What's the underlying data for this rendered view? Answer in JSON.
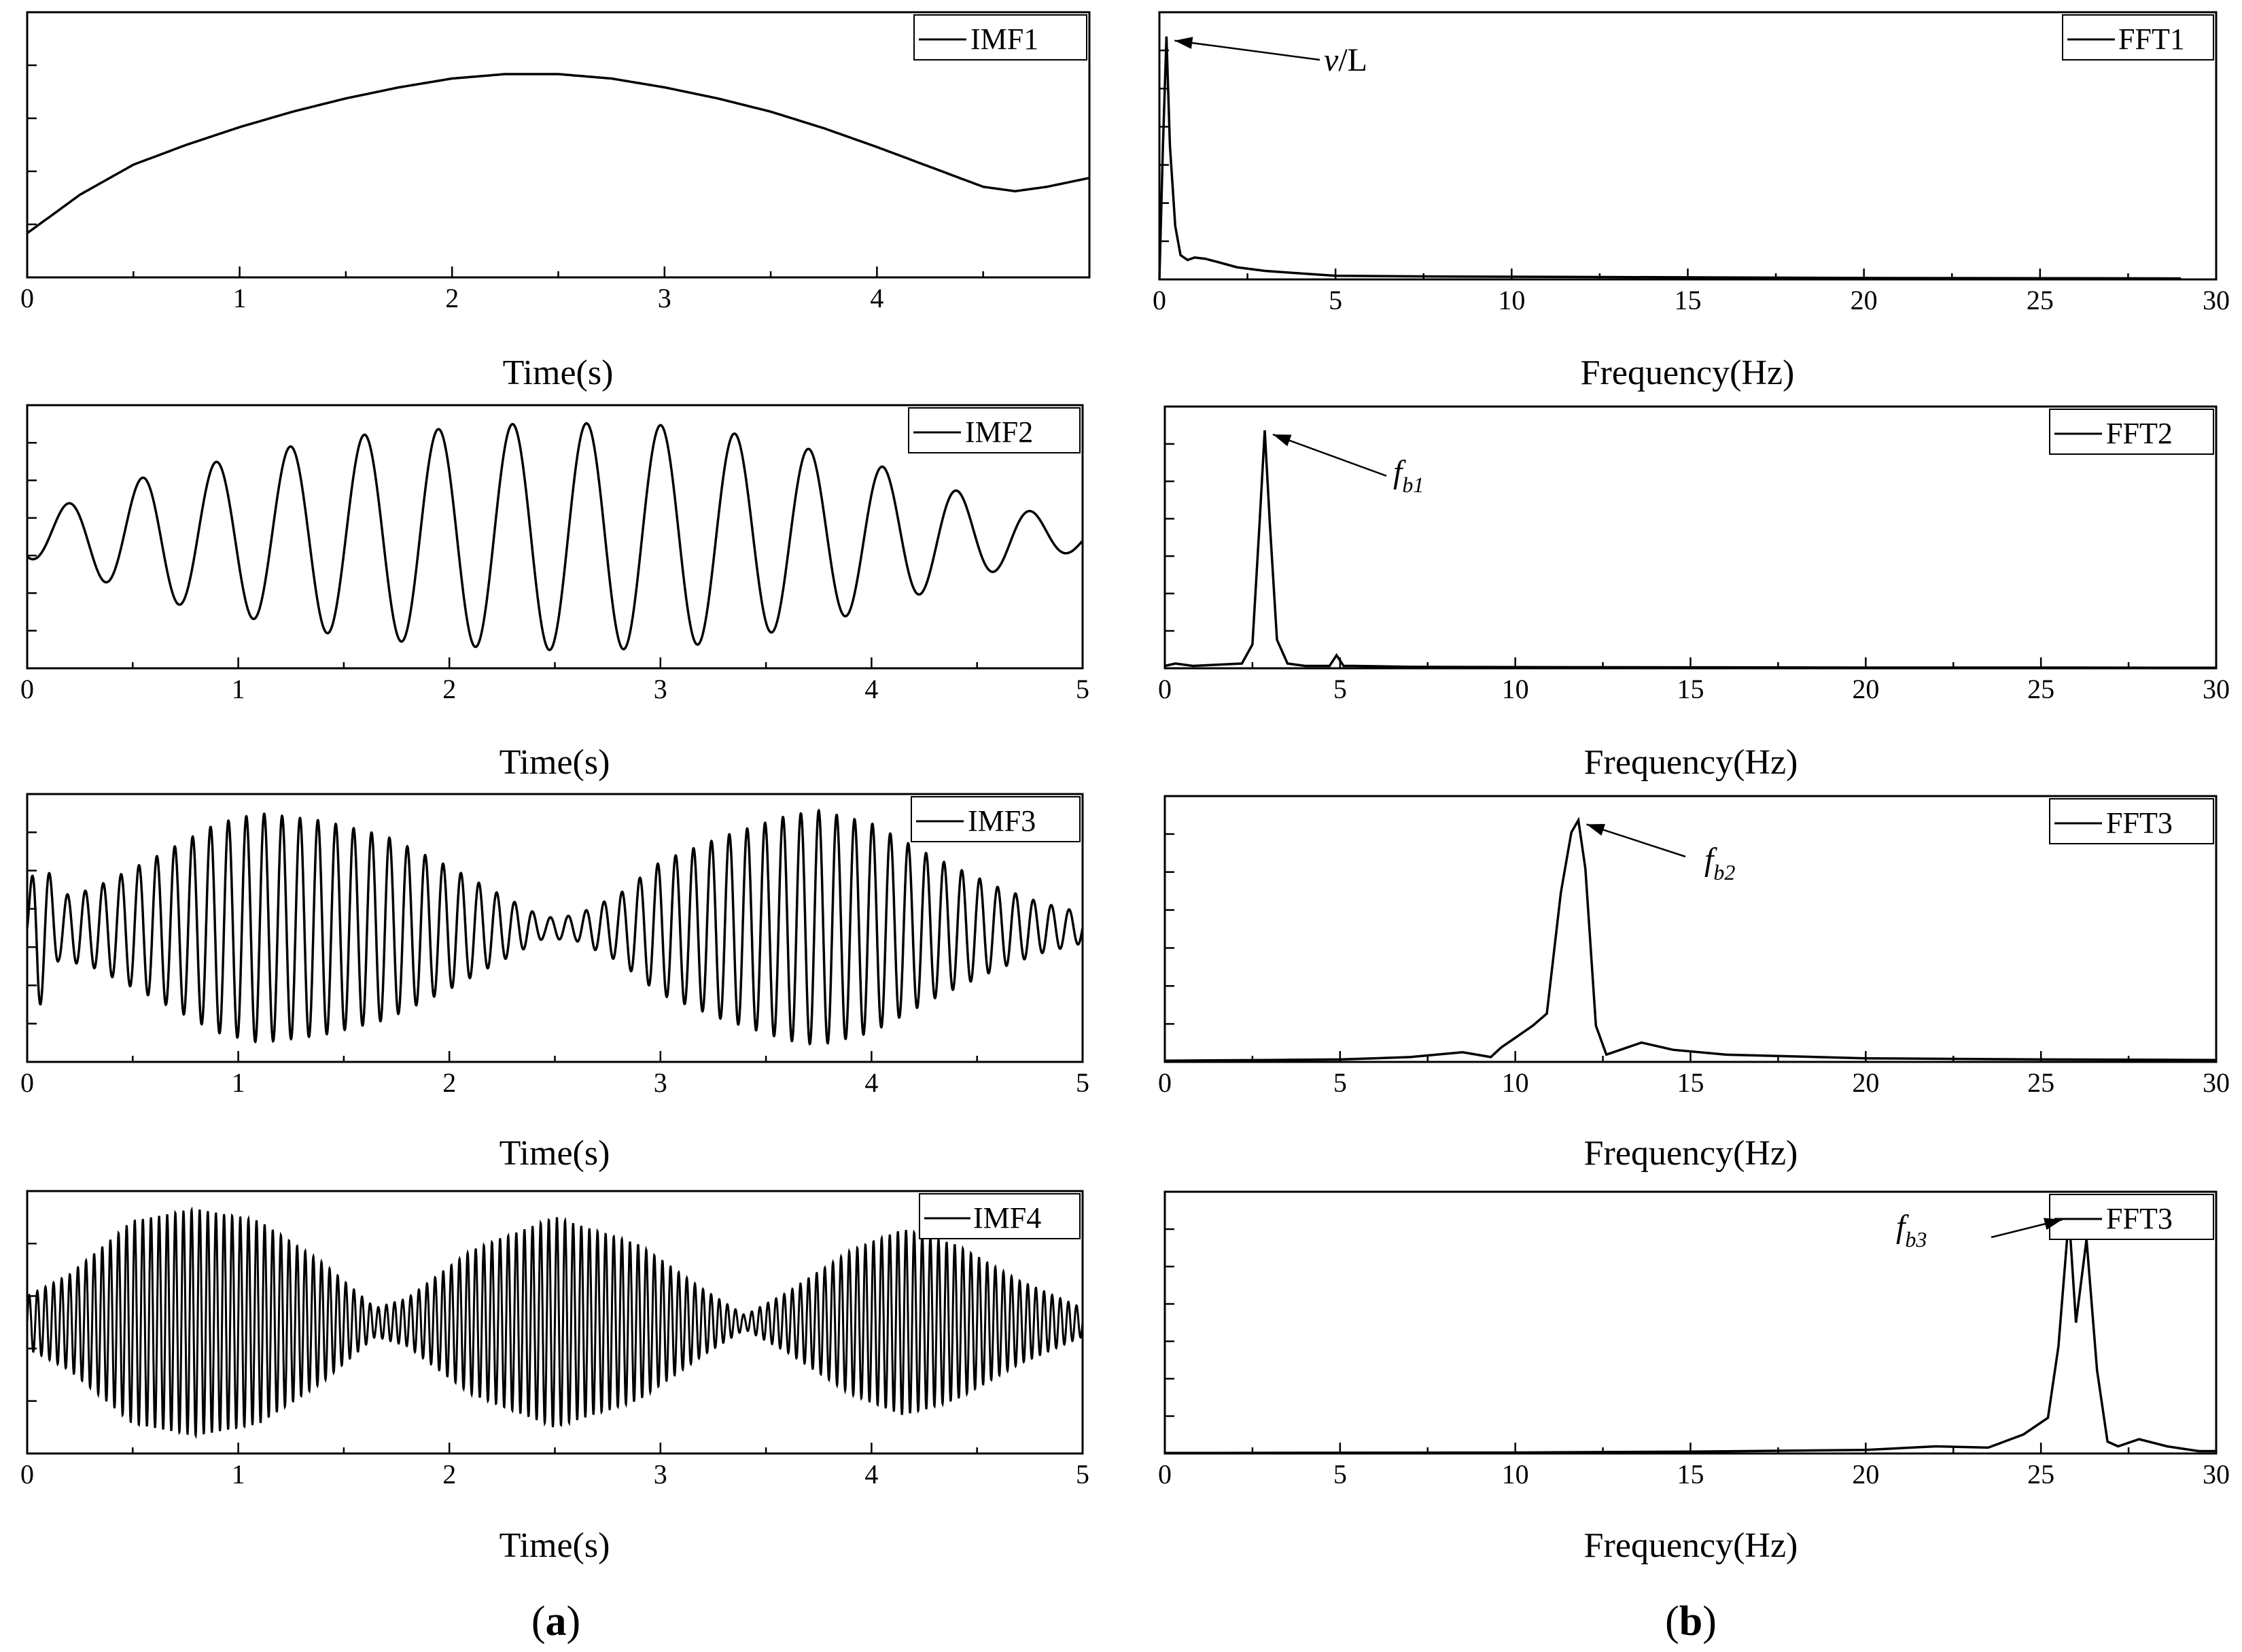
{
  "panel_labels": {
    "a": "a",
    "b": "b"
  },
  "colors": {
    "line": "#000000",
    "background": "#ffffff"
  },
  "chart_data": [
    {
      "id": "imf1",
      "type": "line",
      "legend": "IMF1",
      "legend_placement": "top-right",
      "xlabel": "Time(s)",
      "xlim": [
        0,
        5
      ],
      "xticks": [
        "0",
        "1",
        "2",
        "3",
        "4"
      ],
      "tickvals": [
        0,
        1,
        2,
        3,
        4
      ],
      "signal": "smooth",
      "ylim": [
        -1.2,
        1.2
      ],
      "y_ticks_minor": 4,
      "series": [
        {
          "x": [
            0,
            0.25,
            0.5,
            0.75,
            1,
            1.25,
            1.5,
            1.75,
            2,
            2.25,
            2.5,
            2.75,
            3,
            3.25,
            3.5,
            3.75,
            4,
            4.25,
            4.5,
            4.65,
            4.8,
            5
          ],
          "y": [
            -0.8,
            -0.45,
            -0.18,
            0.0,
            0.16,
            0.3,
            0.42,
            0.52,
            0.6,
            0.64,
            0.64,
            0.6,
            0.52,
            0.42,
            0.3,
            0.15,
            -0.02,
            -0.2,
            -0.38,
            -0.42,
            -0.38,
            -0.3
          ]
        }
      ]
    },
    {
      "id": "fft1",
      "type": "line",
      "legend": "FFT1",
      "legend_placement": "top-right",
      "xlabel": "Frequency(Hz)",
      "xlim": [
        0,
        30
      ],
      "xticks": [
        "0",
        "5",
        "10",
        "15",
        "20",
        "25",
        "30"
      ],
      "tickvals": [
        0,
        5,
        10,
        15,
        20,
        25,
        30
      ],
      "signal": "spectrum",
      "ylim": [
        0,
        1.1
      ],
      "series": [
        {
          "x": [
            0,
            0.1,
            0.2,
            0.3,
            0.45,
            0.6,
            0.8,
            1.0,
            1.3,
            1.7,
            2.2,
            3,
            4,
            5,
            8,
            12,
            16,
            20,
            25,
            29
          ],
          "y": [
            0,
            0.55,
            1.0,
            0.55,
            0.22,
            0.1,
            0.08,
            0.09,
            0.085,
            0.07,
            0.05,
            0.035,
            0.025,
            0.015,
            0.012,
            0.01,
            0.008,
            0.006,
            0.005,
            0.004
          ]
        }
      ],
      "annotation": {
        "text": "v/L",
        "target": [
          0.2,
          1.0
        ]
      }
    },
    {
      "id": "imf2",
      "type": "line",
      "legend": "IMF2",
      "legend_placement": "top-right",
      "xlabel": "Time(s)",
      "xlim": [
        0,
        5
      ],
      "xticks": [
        "0",
        "1",
        "2",
        "3",
        "4",
        "5"
      ],
      "tickvals": [
        0,
        1,
        2,
        3,
        4,
        5
      ],
      "signal": "oscillation",
      "ylim": [
        -1.25,
        1.25
      ],
      "y_ticks_minor": 6,
      "frequency": 2.85,
      "phase": -1.9,
      "envelope": {
        "t": [
          0,
          0.3,
          0.6,
          1,
          1.3,
          1.6,
          2,
          2.3,
          2.6,
          3,
          3.3,
          3.6,
          4,
          4.3,
          4.6,
          5
        ],
        "a": [
          0.2,
          0.38,
          0.6,
          0.75,
          0.88,
          0.97,
          1.03,
          1.07,
          1.08,
          1.06,
          1.0,
          0.88,
          0.7,
          0.5,
          0.32,
          0.12
        ]
      }
    },
    {
      "id": "fft2",
      "type": "line",
      "legend": "FFT2",
      "legend_placement": "top-right",
      "xlabel": "Frequency(Hz)",
      "xlim": [
        0,
        30
      ],
      "xticks": [
        "0",
        "5",
        "10",
        "15",
        "20",
        "25",
        "30"
      ],
      "tickvals": [
        0,
        5,
        10,
        15,
        20,
        25,
        30
      ],
      "signal": "spectrum",
      "ylim": [
        0,
        1.1
      ],
      "series": [
        {
          "x": [
            0,
            0.3,
            0.8,
            1.5,
            2.2,
            2.5,
            2.7,
            2.85,
            3.0,
            3.2,
            3.5,
            4,
            4.7,
            4.9,
            5.1,
            5.4,
            7,
            10,
            15,
            20,
            25,
            30
          ],
          "y": [
            0.01,
            0.02,
            0.01,
            0.015,
            0.02,
            0.1,
            0.6,
            1.0,
            0.6,
            0.12,
            0.02,
            0.01,
            0.01,
            0.055,
            0.01,
            0.01,
            0.006,
            0.005,
            0.004,
            0.003,
            0.003,
            0.002
          ]
        }
      ],
      "annotation": {
        "text": "f",
        "sub": "b1",
        "target": [
          2.85,
          1.0
        ]
      }
    },
    {
      "id": "imf3",
      "type": "line",
      "legend": "IMF3",
      "legend_placement": "top-right",
      "xlabel": "Time(s)",
      "xlim": [
        0,
        5
      ],
      "xticks": [
        "0",
        "1",
        "2",
        "3",
        "4",
        "5"
      ],
      "tickvals": [
        0,
        1,
        2,
        3,
        4,
        5
      ],
      "signal": "oscillation",
      "ylim": [
        -1.05,
        1.05
      ],
      "y_ticks_minor": 6,
      "frequency": 11.8,
      "phase": 0,
      "envelope": {
        "t": [
          0,
          0.05,
          0.15,
          0.3,
          0.6,
          0.9,
          1.1,
          1.4,
          1.7,
          2.0,
          2.2,
          2.45,
          2.6,
          2.8,
          3.0,
          3.3,
          3.6,
          3.75,
          4.0,
          4.3,
          4.6,
          4.8,
          5
        ],
        "a": [
          0.2,
          0.65,
          0.25,
          0.3,
          0.55,
          0.82,
          0.9,
          0.84,
          0.72,
          0.48,
          0.3,
          0.08,
          0.1,
          0.26,
          0.52,
          0.72,
          0.88,
          0.92,
          0.82,
          0.55,
          0.32,
          0.2,
          0.12
        ]
      }
    },
    {
      "id": "fft3",
      "type": "line",
      "legend": "FFT3",
      "legend_placement": "top-right",
      "xlabel": "Frequency(Hz)",
      "xlim": [
        0,
        30
      ],
      "xticks": [
        "0",
        "5",
        "10",
        "15",
        "20",
        "25",
        "30"
      ],
      "tickvals": [
        0,
        5,
        10,
        15,
        20,
        25,
        30
      ],
      "signal": "spectrum",
      "ylim": [
        0,
        1.1
      ],
      "series": [
        {
          "x": [
            0,
            3,
            5,
            7,
            8.5,
            9.3,
            9.6,
            10,
            10.5,
            10.9,
            11.3,
            11.6,
            11.8,
            12,
            12.3,
            12.6,
            13,
            13.6,
            14.5,
            16,
            20,
            25,
            30
          ],
          "y": [
            0.005,
            0.008,
            0.01,
            0.02,
            0.04,
            0.02,
            0.06,
            0.1,
            0.15,
            0.2,
            0.7,
            0.95,
            1.0,
            0.8,
            0.15,
            0.03,
            0.05,
            0.08,
            0.05,
            0.03,
            0.015,
            0.01,
            0.008
          ]
        }
      ],
      "annotation": {
        "text": "f",
        "sub": "b2",
        "target": [
          11.8,
          1.0
        ]
      }
    },
    {
      "id": "imf4",
      "type": "line",
      "legend": "IMF4",
      "legend_placement": "top-right",
      "xlabel": "Time(s)",
      "xlim": [
        0,
        5
      ],
      "xticks": [
        "0",
        "1",
        "2",
        "3",
        "4",
        "5"
      ],
      "tickvals": [
        0,
        1,
        2,
        3,
        4,
        5
      ],
      "signal": "oscillation",
      "ylim": [
        -1.1,
        1.1
      ],
      "y_ticks_minor": 4,
      "frequency": 26.0,
      "phase": 0,
      "envelope": {
        "t": [
          0,
          0.2,
          0.5,
          0.8,
          1.1,
          1.4,
          1.65,
          1.8,
          2.1,
          2.5,
          2.9,
          3.2,
          3.4,
          3.6,
          3.9,
          4.15,
          4.4,
          4.7,
          5
        ],
        "a": [
          0.22,
          0.4,
          0.85,
          0.95,
          0.85,
          0.5,
          0.12,
          0.2,
          0.6,
          0.88,
          0.65,
          0.28,
          0.06,
          0.25,
          0.6,
          0.78,
          0.65,
          0.35,
          0.12
        ]
      }
    },
    {
      "id": "fft4",
      "type": "line",
      "legend": "FFT3",
      "legend_placement": "top-right",
      "xlabel": "Frequency(Hz)",
      "xlim": [
        0,
        30
      ],
      "xticks": [
        "0",
        "5",
        "10",
        "15",
        "20",
        "25",
        "30"
      ],
      "tickvals": [
        0,
        5,
        10,
        15,
        20,
        25,
        30
      ],
      "signal": "spectrum",
      "ylim": [
        0,
        1.1
      ],
      "series": [
        {
          "x": [
            0,
            10,
            15,
            20,
            22,
            23.5,
            24.5,
            25.2,
            25.5,
            25.8,
            26.0,
            26.3,
            26.6,
            26.9,
            27.2,
            27.8,
            28.6,
            29.5,
            30
          ],
          "y": [
            0.002,
            0.004,
            0.008,
            0.015,
            0.03,
            0.025,
            0.08,
            0.15,
            0.45,
            1.0,
            0.55,
            0.9,
            0.35,
            0.05,
            0.03,
            0.06,
            0.03,
            0.01,
            0.01
          ]
        }
      ],
      "annotation": {
        "text": "f",
        "sub": "b3",
        "target": [
          25.8,
          1.0
        ]
      }
    }
  ]
}
